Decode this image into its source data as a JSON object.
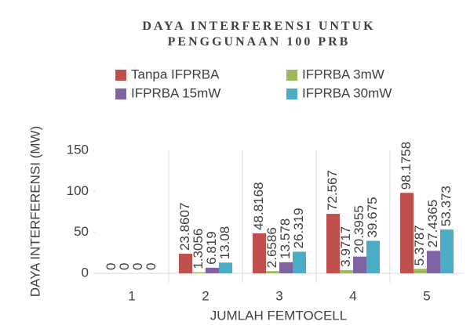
{
  "chart_data": {
    "type": "bar",
    "title": "DAYA INTERFERENSI UNTUK PENGGUNAAN 100 PRB",
    "x_label": "JUMLAH FEMTOCELL",
    "y_label": "DAYA INTERFERENSI (MW)",
    "categories": [
      "1",
      "2",
      "3",
      "4",
      "5"
    ],
    "series": [
      {
        "name": "Tanpa IFPRBA",
        "color": "#c0504d",
        "values": [
          0,
          23.8607,
          48.8168,
          72.567,
          98.1758
        ]
      },
      {
        "name": "IFPRBA 3mW",
        "color": "#9bbb59",
        "values": [
          0,
          1.3056,
          2.6586,
          3.9717,
          5.3787
        ]
      },
      {
        "name": "IFPRBA 15mW",
        "color": "#8064a2",
        "values": [
          0,
          6.819,
          13.578,
          20.3955,
          27.4365
        ]
      },
      {
        "name": "IFPRBA 30mW",
        "color": "#4bacc6",
        "values": [
          0,
          13.08,
          26.319,
          39.675,
          53.373
        ]
      }
    ],
    "ylim": [
      0,
      150
    ],
    "yticks": [
      0,
      50,
      100,
      150
    ],
    "legend": "top"
  }
}
